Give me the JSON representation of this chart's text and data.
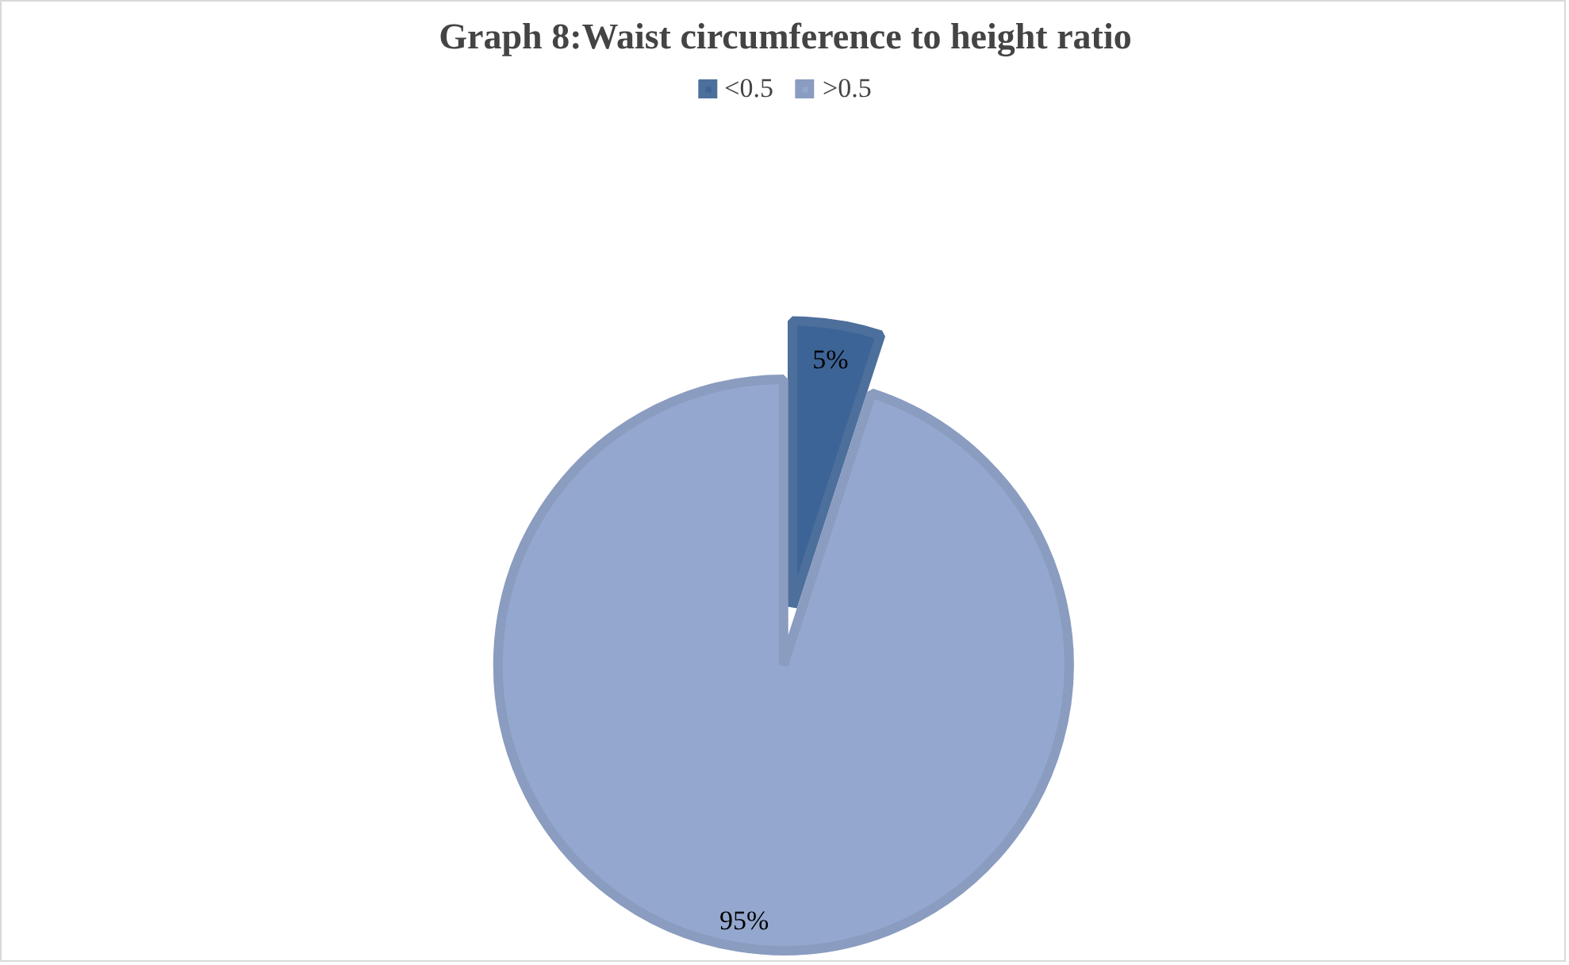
{
  "chart_data": {
    "type": "pie",
    "title": "Graph 8:Waist circumference to height ratio",
    "categories": [
      "<0.5",
      ">0.5"
    ],
    "values": [
      5,
      95
    ],
    "colors": [
      "#3d6496",
      "#94a8cf"
    ],
    "value_labels": [
      "5%",
      "95%"
    ],
    "legend": "top"
  }
}
